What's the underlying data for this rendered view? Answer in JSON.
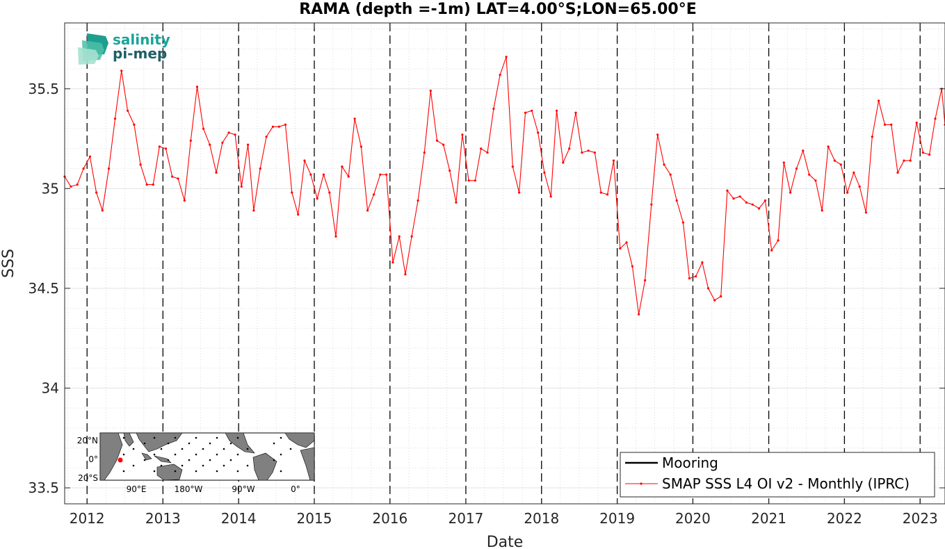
{
  "chart_data": {
    "type": "line",
    "title": "RAMA (depth =-1m) LAT=4.00°S;LON=65.00°E",
    "xlabel": "Date",
    "ylabel": "SSS",
    "xlim": [
      "2011-09-15",
      "2023-05-01"
    ],
    "ylim": [
      33.42,
      35.83
    ],
    "yticks": [
      33.5,
      34,
      34.5,
      35,
      35.5
    ],
    "ytick_labels": [
      "33.5",
      "34",
      "34.5",
      "35",
      "35.5"
    ],
    "xticks": [
      "2012-01-01",
      "2013-01-01",
      "2014-01-01",
      "2015-01-01",
      "2016-01-01",
      "2017-01-01",
      "2018-01-01",
      "2019-01-01",
      "2020-01-01",
      "2021-01-01",
      "2022-01-01",
      "2023-01-01"
    ],
    "xtick_labels": [
      "2012",
      "2013",
      "2014",
      "2015",
      "2016",
      "2017",
      "2018",
      "2019",
      "2020",
      "2021",
      "2022",
      "2023"
    ],
    "year_markers": [
      "2012-01-01",
      "2013-01-01",
      "2014-01-01",
      "2015-01-01",
      "2016-01-01",
      "2017-01-01",
      "2018-01-01",
      "2019-01-01",
      "2020-01-01",
      "2021-01-01",
      "2022-01-01",
      "2023-01-01"
    ],
    "grid": true,
    "legend_position": "bottom-right",
    "series": [
      {
        "name": "Mooring",
        "color": "#000000",
        "x": [],
        "y": []
      },
      {
        "name": "SMAP SSS L4 OI v2 - Monthly (IPRC)",
        "color": "#ff0000",
        "x": [
          "2011-09-15",
          "2011-10-15",
          "2011-11-15",
          "2011-12-15",
          "2012-01-15",
          "2012-02-15",
          "2012-03-15",
          "2012-04-15",
          "2012-05-15",
          "2012-06-15",
          "2012-07-15",
          "2012-08-15",
          "2012-09-15",
          "2012-10-15",
          "2012-11-15",
          "2012-12-15",
          "2013-01-15",
          "2013-02-15",
          "2013-03-15",
          "2013-04-15",
          "2013-05-15",
          "2013-06-15",
          "2013-07-15",
          "2013-08-15",
          "2013-09-15",
          "2013-10-15",
          "2013-11-15",
          "2013-12-15",
          "2014-01-15",
          "2014-02-15",
          "2014-03-15",
          "2014-04-15",
          "2014-05-15",
          "2014-06-15",
          "2014-07-15",
          "2014-08-15",
          "2014-09-15",
          "2014-10-15",
          "2014-11-15",
          "2014-12-15",
          "2015-01-15",
          "2015-02-15",
          "2015-03-15",
          "2015-04-15",
          "2015-05-15",
          "2015-06-15",
          "2015-07-15",
          "2015-08-15",
          "2015-09-15",
          "2015-10-15",
          "2015-11-15",
          "2015-12-15",
          "2016-01-15",
          "2016-02-15",
          "2016-03-15",
          "2016-04-15",
          "2016-05-15",
          "2016-06-15",
          "2016-07-15",
          "2016-08-15",
          "2016-09-15",
          "2016-10-15",
          "2016-11-15",
          "2016-12-15",
          "2017-01-15",
          "2017-02-15",
          "2017-03-15",
          "2017-04-15",
          "2017-05-15",
          "2017-06-15",
          "2017-07-15",
          "2017-08-15",
          "2017-09-15",
          "2017-10-15",
          "2017-11-15",
          "2017-12-15",
          "2018-01-15",
          "2018-02-15",
          "2018-03-15",
          "2018-04-15",
          "2018-05-15",
          "2018-06-15",
          "2018-07-15",
          "2018-08-15",
          "2018-09-15",
          "2018-10-15",
          "2018-11-15",
          "2018-12-15",
          "2019-01-15",
          "2019-02-15",
          "2019-03-15",
          "2019-04-15",
          "2019-05-15",
          "2019-06-15",
          "2019-07-15",
          "2019-08-15",
          "2019-09-15",
          "2019-10-15",
          "2019-11-15",
          "2019-12-15",
          "2020-01-15",
          "2020-02-15",
          "2020-03-15",
          "2020-04-15",
          "2020-05-15",
          "2020-06-15",
          "2020-07-15",
          "2020-08-15",
          "2020-09-15",
          "2020-10-15",
          "2020-11-15",
          "2020-12-15",
          "2021-01-15",
          "2021-02-15",
          "2021-03-15",
          "2021-04-15",
          "2021-05-15",
          "2021-06-15",
          "2021-07-15",
          "2021-08-15",
          "2021-09-15",
          "2021-10-15",
          "2021-11-15",
          "2021-12-15",
          "2022-01-15",
          "2022-02-15",
          "2022-03-15",
          "2022-04-15",
          "2022-05-15",
          "2022-06-15",
          "2022-07-15",
          "2022-08-15",
          "2022-09-15",
          "2022-10-15",
          "2022-11-15",
          "2022-12-15",
          "2023-01-15",
          "2023-02-15",
          "2023-03-15",
          "2023-04-15",
          "2023-05-01"
        ],
        "y": [
          35.06,
          35.01,
          35.02,
          35.1,
          35.16,
          34.98,
          34.89,
          35.1,
          35.35,
          35.59,
          35.39,
          35.32,
          35.12,
          35.02,
          35.02,
          35.21,
          35.2,
          35.06,
          35.05,
          34.94,
          35.24,
          35.51,
          35.3,
          35.22,
          35.08,
          35.23,
          35.28,
          35.27,
          35.01,
          35.22,
          34.89,
          35.1,
          35.26,
          35.31,
          35.31,
          35.32,
          34.98,
          34.87,
          35.14,
          35.07,
          34.95,
          35.07,
          34.98,
          34.76,
          35.11,
          35.06,
          35.35,
          35.21,
          34.89,
          34.97,
          35.07,
          35.07,
          34.63,
          34.76,
          34.57,
          34.76,
          34.94,
          35.18,
          35.49,
          35.24,
          35.22,
          35.09,
          34.93,
          35.27,
          35.04,
          35.04,
          35.2,
          35.18,
          35.4,
          35.57,
          35.66,
          35.11,
          34.98,
          35.38,
          35.39,
          35.28,
          35.08,
          34.96,
          35.39,
          35.13,
          35.2,
          35.38,
          35.18,
          35.19,
          35.18,
          34.98,
          34.97,
          35.14,
          34.7,
          34.73,
          34.61,
          34.37,
          34.54,
          34.92,
          35.27,
          35.12,
          35.07,
          34.94,
          34.83,
          34.55,
          34.56,
          34.63,
          34.5,
          34.44,
          34.46,
          34.99,
          34.95,
          34.96,
          34.93,
          34.92,
          34.9,
          34.94,
          34.69,
          34.74,
          35.13,
          34.98,
          35.1,
          35.19,
          35.07,
          35.04,
          34.89,
          35.21,
          35.14,
          35.12,
          34.98,
          35.08,
          35.01,
          34.88,
          35.26,
          35.44,
          35.32,
          35.32,
          35.08,
          35.14,
          35.14,
          35.33,
          35.18,
          35.17,
          35.35,
          35.5,
          35.32
        ]
      }
    ]
  },
  "logo": {
    "line1": "salinity",
    "line2": "pi-mep",
    "color1": "#1aa39a",
    "color2": "#1d5f66"
  },
  "inset_map": {
    "lat_labels": [
      "20°N",
      "0°",
      "20°S"
    ],
    "lon_labels": [
      "90°E",
      "180°W",
      "90°W",
      "0°"
    ],
    "marker_color": "#ff0000"
  }
}
